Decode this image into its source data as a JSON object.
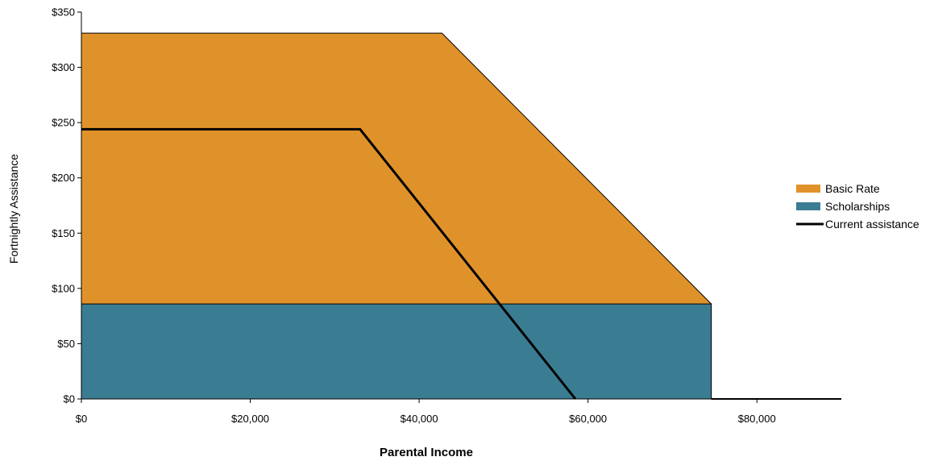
{
  "chart_data": {
    "type": "area",
    "title": "",
    "xlabel": "Parental Income",
    "ylabel": "Fortnightly Assistance",
    "xlim": [
      0,
      90000
    ],
    "ylim": [
      0,
      350
    ],
    "x_ticks": [
      {
        "value": 0,
        "label": "$0"
      },
      {
        "value": 20000,
        "label": "$20,000"
      },
      {
        "value": 40000,
        "label": "$40,000"
      },
      {
        "value": 60000,
        "label": "$60,000"
      },
      {
        "value": 80000,
        "label": "$80,000"
      }
    ],
    "y_ticks": [
      {
        "value": 0,
        "label": "$0"
      },
      {
        "value": 50,
        "label": "$50"
      },
      {
        "value": 100,
        "label": "$100"
      },
      {
        "value": 150,
        "label": "$150"
      },
      {
        "value": 200,
        "label": "$200"
      },
      {
        "value": 250,
        "label": "$250"
      },
      {
        "value": 300,
        "label": "$300"
      },
      {
        "value": 350,
        "label": "$350"
      }
    ],
    "series": [
      {
        "name": "Basic Rate",
        "kind": "area",
        "color": "#E0922A",
        "points": [
          [
            0,
            331
          ],
          [
            42700,
            331
          ],
          [
            74600,
            86
          ],
          [
            74600,
            0
          ],
          [
            0,
            0
          ]
        ]
      },
      {
        "name": "Scholarships",
        "kind": "area",
        "color": "#3A7D93",
        "points": [
          [
            0,
            86
          ],
          [
            74600,
            86
          ],
          [
            74600,
            0
          ],
          [
            0,
            0
          ]
        ]
      },
      {
        "name": "Current assistance",
        "kind": "line",
        "color": "#000000",
        "points": [
          [
            0,
            244
          ],
          [
            33000,
            244
          ],
          [
            58500,
            0
          ]
        ]
      }
    ],
    "extra_lines": [
      {
        "name": "zero-income-tail",
        "color": "#000000",
        "points": [
          [
            74600,
            0
          ],
          [
            90000,
            0
          ]
        ]
      }
    ],
    "legend": {
      "position": "right",
      "entries": [
        {
          "label": "Basic Rate",
          "swatch": "box",
          "color": "#E0922A"
        },
        {
          "label": "Scholarships",
          "swatch": "box",
          "color": "#3A7D93"
        },
        {
          "label": "Current assistance",
          "swatch": "line",
          "color": "#000000"
        }
      ]
    },
    "grid": false
  }
}
